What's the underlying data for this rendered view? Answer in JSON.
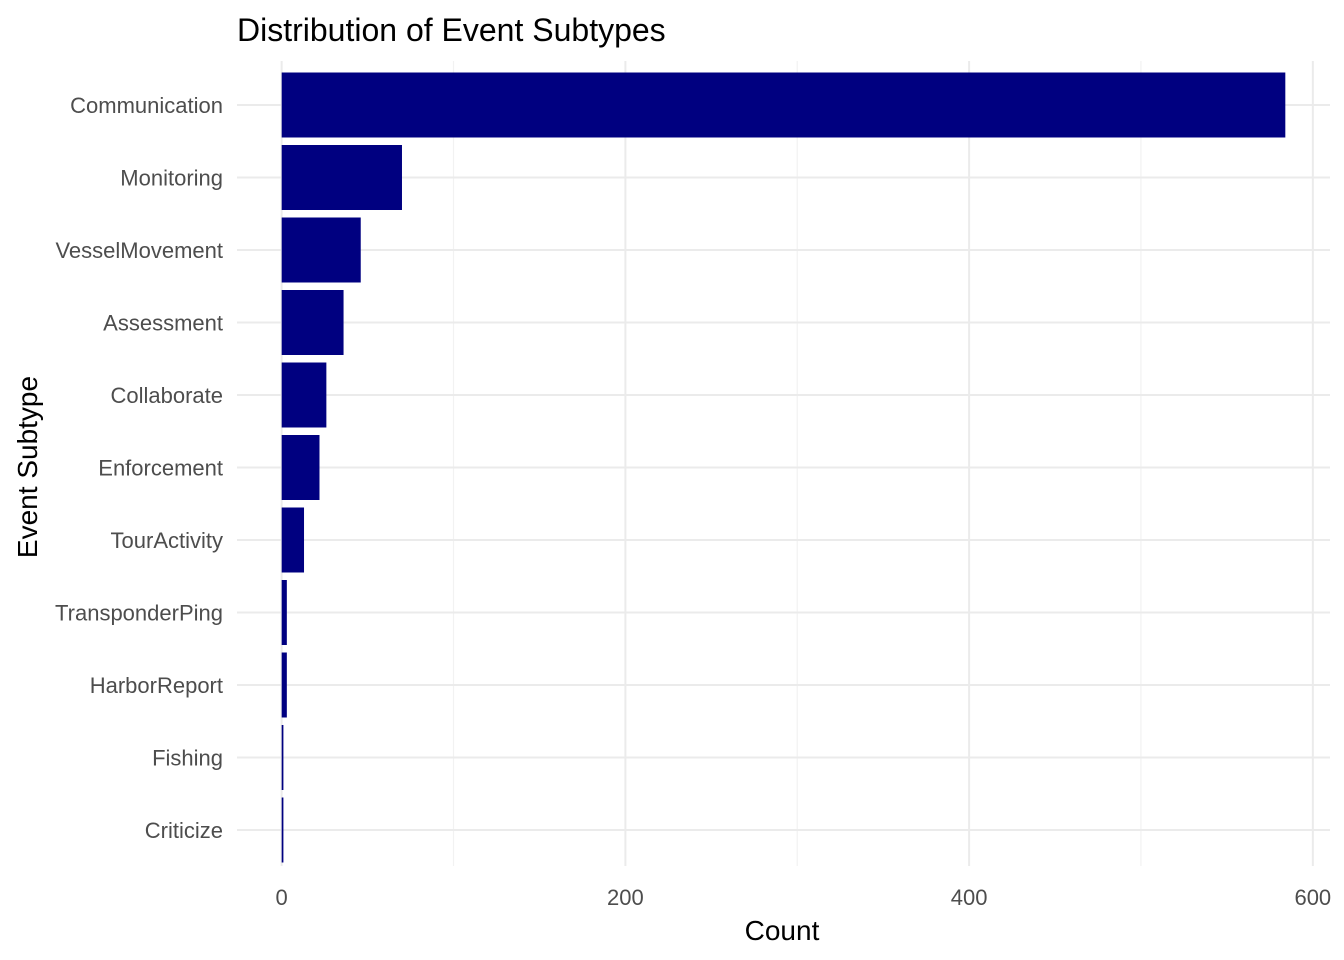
{
  "chart_data": {
    "type": "bar",
    "orientation": "horizontal",
    "title": "Distribution of Event Subtypes",
    "xlabel": "Count",
    "ylabel": "Event Subtype",
    "categories": [
      "Communication",
      "Monitoring",
      "VesselMovement",
      "Assessment",
      "Collaborate",
      "Enforcement",
      "TourActivity",
      "TransponderPing",
      "HarborReport",
      "Fishing",
      "Criticize"
    ],
    "values": [
      584,
      70,
      46,
      36,
      26,
      22,
      13,
      3,
      3,
      1,
      1
    ],
    "xlim": [
      -26,
      610
    ],
    "xticks": [
      0,
      200,
      400,
      600
    ],
    "xtick_labels": [
      "0",
      "200",
      "400",
      "600"
    ],
    "grid": true,
    "legend": "none",
    "bar_color": "#000080"
  }
}
